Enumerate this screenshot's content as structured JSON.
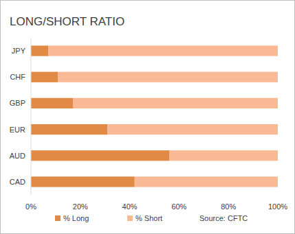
{
  "chart_data": {
    "type": "bar",
    "title": "LONG/SHORT RATIO",
    "orientation": "horizontal",
    "stacked": true,
    "categories": [
      "JPY",
      "CHF",
      "GBP",
      "EUR",
      "AUD",
      "CAD"
    ],
    "series": [
      {
        "name": "% Long",
        "color": "#e08a45",
        "values": [
          7,
          11,
          17,
          31,
          56,
          42
        ]
      },
      {
        "name": "% Short",
        "color": "#f9b995",
        "values": [
          93,
          89,
          83,
          69,
          44,
          58
        ]
      }
    ],
    "xlim": [
      0,
      100
    ],
    "xticks": [
      {
        "value": 0,
        "label": "0%"
      },
      {
        "value": 20,
        "label": "20%"
      },
      {
        "value": 40,
        "label": "40%"
      },
      {
        "value": 60,
        "label": "60%"
      },
      {
        "value": 80,
        "label": "80%"
      },
      {
        "value": 100,
        "label": "100%"
      }
    ],
    "grid": false,
    "legend": "bottom",
    "annotation": "Source: CFTC"
  }
}
